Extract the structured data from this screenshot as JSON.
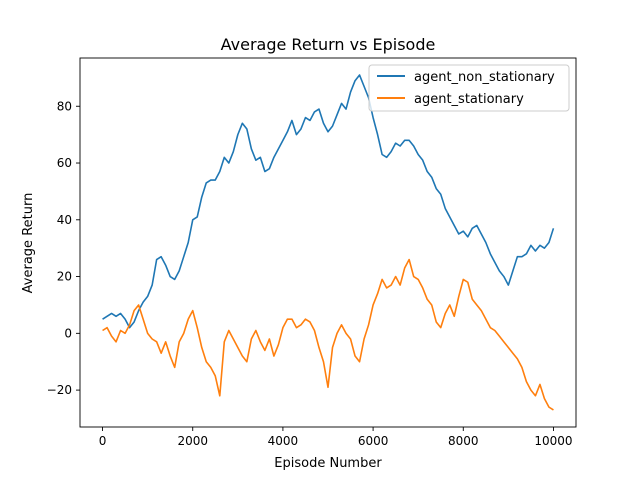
{
  "chart_data": {
    "type": "line",
    "title": "Average Return vs Episode",
    "xlabel": "Episode Number",
    "ylabel": "Average Return",
    "xlim": [
      -500,
      10500
    ],
    "ylim": [
      -33,
      97
    ],
    "xticks": [
      0,
      2000,
      4000,
      6000,
      8000,
      10000
    ],
    "yticks": [
      -20,
      0,
      20,
      40,
      60,
      80
    ],
    "grid": false,
    "legend_position": "top-right",
    "series": [
      {
        "name": "agent_non_stationary",
        "color": "#1f77b4",
        "x": [
          0,
          100,
          200,
          300,
          400,
          500,
          600,
          700,
          800,
          900,
          1000,
          1100,
          1200,
          1300,
          1400,
          1500,
          1600,
          1700,
          1800,
          1900,
          2000,
          2100,
          2200,
          2300,
          2400,
          2500,
          2600,
          2700,
          2800,
          2900,
          3000,
          3100,
          3200,
          3300,
          3400,
          3500,
          3600,
          3700,
          3800,
          3900,
          4000,
          4100,
          4200,
          4300,
          4400,
          4500,
          4600,
          4700,
          4800,
          4900,
          5000,
          5100,
          5200,
          5300,
          5400,
          5500,
          5600,
          5700,
          5800,
          5900,
          6000,
          6100,
          6200,
          6300,
          6400,
          6500,
          6600,
          6700,
          6800,
          6900,
          7000,
          7100,
          7200,
          7300,
          7400,
          7500,
          7600,
          7700,
          7800,
          7900,
          8000,
          8100,
          8200,
          8300,
          8400,
          8500,
          8600,
          8700,
          8800,
          8900,
          9000,
          9100,
          9200,
          9300,
          9400,
          9500,
          9600,
          9700,
          9800,
          9900,
          10000
        ],
        "y": [
          5,
          6,
          7,
          6,
          7,
          5,
          2,
          4,
          8,
          11,
          13,
          17,
          26,
          27,
          24,
          20,
          19,
          22,
          27,
          32,
          40,
          41,
          48,
          53,
          54,
          54,
          57,
          62,
          60,
          64,
          70,
          74,
          72,
          65,
          61,
          62,
          57,
          58,
          62,
          65,
          68,
          71,
          75,
          70,
          72,
          76,
          75,
          78,
          79,
          74,
          71,
          73,
          77,
          81,
          79,
          85,
          89,
          91,
          87,
          83,
          76,
          70,
          63,
          62,
          64,
          67,
          66,
          68,
          68,
          66,
          63,
          61,
          57,
          55,
          51,
          49,
          44,
          41,
          38,
          35,
          36,
          34,
          37,
          38,
          35,
          32,
          28,
          25,
          22,
          20,
          17,
          22,
          27,
          27,
          28,
          31,
          29,
          31,
          30,
          32,
          37
        ]
      },
      {
        "name": "agent_stationary",
        "color": "#ff7f0e",
        "x": [
          0,
          100,
          200,
          300,
          400,
          500,
          600,
          700,
          800,
          900,
          1000,
          1100,
          1200,
          1300,
          1400,
          1500,
          1600,
          1700,
          1800,
          1900,
          2000,
          2100,
          2200,
          2300,
          2400,
          2500,
          2600,
          2700,
          2800,
          2900,
          3000,
          3100,
          3200,
          3300,
          3400,
          3500,
          3600,
          3700,
          3800,
          3900,
          4000,
          4100,
          4200,
          4300,
          4400,
          4500,
          4600,
          4700,
          4800,
          4900,
          5000,
          5100,
          5200,
          5300,
          5400,
          5500,
          5600,
          5700,
          5800,
          5900,
          6000,
          6100,
          6200,
          6300,
          6400,
          6500,
          6600,
          6700,
          6800,
          6900,
          7000,
          7100,
          7200,
          7300,
          7400,
          7500,
          7600,
          7700,
          7800,
          7900,
          8000,
          8100,
          8200,
          8300,
          8400,
          8500,
          8600,
          8700,
          8800,
          8900,
          9000,
          9100,
          9200,
          9300,
          9400,
          9500,
          9600,
          9700,
          9800,
          9900,
          10000
        ],
        "y": [
          1,
          2,
          -1,
          -3,
          1,
          0,
          3,
          8,
          10,
          5,
          0,
          -2,
          -3,
          -7,
          -3,
          -8,
          -12,
          -3,
          0,
          5,
          8,
          2,
          -5,
          -10,
          -12,
          -15,
          -22,
          -3,
          1,
          -2,
          -5,
          -8,
          -10,
          -2,
          1,
          -3,
          -6,
          -2,
          -8,
          -4,
          2,
          5,
          5,
          2,
          3,
          5,
          4,
          1,
          -5,
          -10,
          -19,
          -5,
          0,
          3,
          0,
          -2,
          -8,
          -10,
          -2,
          3,
          10,
          14,
          19,
          16,
          17,
          20,
          17,
          23,
          26,
          20,
          19,
          16,
          12,
          10,
          4,
          2,
          7,
          10,
          6,
          13,
          19,
          18,
          12,
          10,
          8,
          5,
          2,
          1,
          -1,
          -3,
          -5,
          -7,
          -9,
          -12,
          -17,
          -20,
          -22,
          -18,
          -23,
          -26,
          -27
        ]
      }
    ]
  }
}
